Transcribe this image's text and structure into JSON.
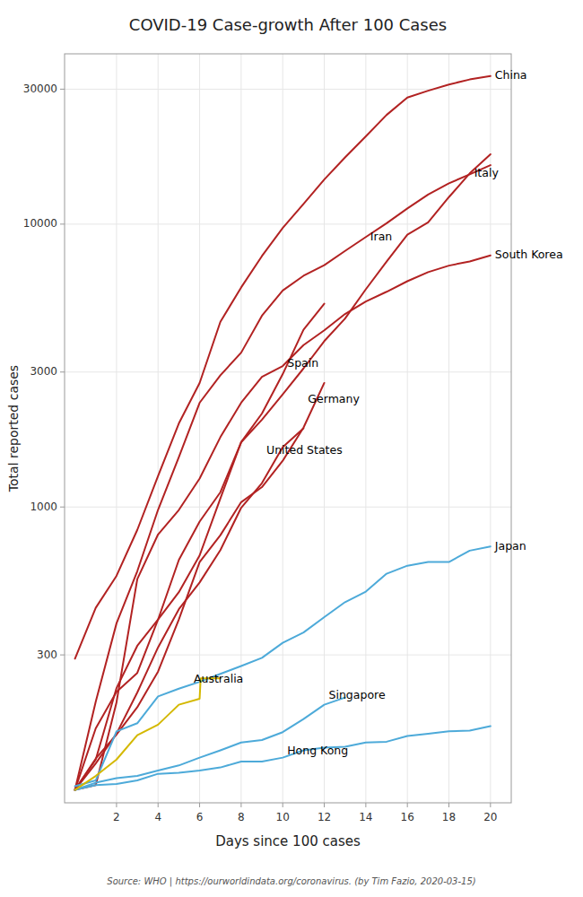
{
  "chart_data": {
    "type": "line",
    "title": "COVID-19 Case-growth After 100 Cases",
    "xlabel": "Days since 100 cases",
    "ylabel": "Total reported cases",
    "source": "Source: WHO | https://ourworldindata.org/coronavirus. (by Tim Fazio, 2020-03-15)",
    "log": "y",
    "grid": true,
    "xlim": [
      -0.5,
      21
    ],
    "ylim": [
      90,
      40000
    ],
    "xticks": [
      2,
      4,
      6,
      8,
      10,
      12,
      14,
      16,
      18,
      20
    ],
    "yticks": [
      300,
      1000,
      3000,
      10000,
      30000
    ],
    "series": [
      {
        "name": "China",
        "color": "#b22222",
        "x": [
          0,
          1,
          2,
          3,
          4,
          5,
          6,
          7,
          8,
          9,
          10,
          11,
          12,
          13,
          14,
          15,
          16,
          17,
          18,
          19,
          20
        ],
        "values": [
          291,
          440,
          571,
          830,
          1287,
          1975,
          2744,
          4515,
          5974,
          7711,
          9692,
          11791,
          14380,
          17205,
          20438,
          24324,
          28018,
          29631,
          31161,
          32459,
          33367
        ],
        "label": {
          "x": 20,
          "y": 33367
        }
      },
      {
        "name": "Italy",
        "color": "#b22222",
        "x": [
          0,
          1,
          2,
          3,
          4,
          5,
          6,
          7,
          8,
          9,
          10,
          11,
          12,
          13,
          14,
          15,
          16,
          17,
          18,
          19,
          20
        ],
        "values": [
          100,
          128,
          229,
          323,
          400,
          650,
          888,
          1128,
          1694,
          2036,
          2502,
          3089,
          3858,
          4636,
          5883,
          7375,
          9172,
          10149,
          12462,
          15113,
          17660
        ],
        "label": {
          "x": 19,
          "y": 15113
        }
      },
      {
        "name": "Iran",
        "color": "#b22222",
        "x": [
          0,
          1,
          2,
          3,
          4,
          5,
          6,
          7,
          8,
          9,
          10,
          11,
          12,
          13,
          14,
          15,
          16,
          17,
          18,
          19,
          20
        ],
        "values": [
          100,
          205,
          388,
          593,
          978,
          1501,
          2336,
          2922,
          3513,
          4747,
          5823,
          6566,
          7161,
          8042,
          9000,
          10075,
          11364,
          12729,
          13938,
          14991,
          16169
        ],
        "label": {
          "x": 14,
          "y": 9000
        }
      },
      {
        "name": "South Korea",
        "color": "#b22222",
        "x": [
          0,
          1,
          2,
          3,
          4,
          5,
          6,
          7,
          8,
          9,
          10,
          11,
          12,
          13,
          14,
          15,
          16,
          17,
          18,
          19,
          20
        ],
        "values": [
          100,
          104,
          204,
          556,
          800,
          976,
          1261,
          1766,
          2337,
          2885,
          3150,
          3736,
          4212,
          4812,
          5328,
          5766,
          6284,
          6767,
          7134,
          7382,
          7755
        ],
        "label": {
          "x": 20,
          "y": 7755
        }
      },
      {
        "name": "Spain",
        "color": "#b22222",
        "x": [
          0,
          1,
          2,
          3,
          4,
          5,
          6,
          7,
          8,
          9,
          10,
          11,
          12
        ],
        "values": [
          100,
          165,
          222,
          259,
          400,
          500,
          674,
          1073,
          1695,
          2140,
          2950,
          4231,
          5232
        ],
        "label": {
          "x": 10,
          "y": 3200
        }
      },
      {
        "name": "Germany",
        "color": "#b22222",
        "x": [
          0,
          1,
          2,
          3,
          4,
          5,
          6,
          7,
          8,
          9,
          10,
          11,
          12
        ],
        "values": [
          100,
          129,
          157,
          196,
          262,
          400,
          639,
          795,
          1040,
          1176,
          1457,
          1908,
          2745
        ],
        "label": {
          "x": 11,
          "y": 2400
        }
      },
      {
        "name": "United States",
        "color": "#b22222",
        "x": [
          0,
          1,
          2,
          3,
          4,
          5,
          6,
          7,
          8,
          9,
          10,
          11
        ],
        "values": [
          100,
          124,
          158,
          221,
          319,
          435,
          541,
          704,
          994,
          1215,
          1629,
          1896
        ],
        "label": {
          "x": 9,
          "y": 1580
        }
      },
      {
        "name": "Japan",
        "color": "#4daad9",
        "x": [
          0,
          1,
          2,
          3,
          4,
          5,
          6,
          7,
          8,
          9,
          10,
          11,
          12,
          13,
          14,
          15,
          16,
          17,
          18,
          19,
          20
        ],
        "values": [
          103,
          108,
          161,
          172,
          214,
          228,
          241,
          257,
          274,
          293,
          331,
          360,
          408,
          461,
          502,
          581,
          620,
          639,
          639,
          701,
          725
        ],
        "label": {
          "x": 20,
          "y": 725
        }
      },
      {
        "name": "Singapore",
        "color": "#4daad9",
        "x": [
          0,
          1,
          2,
          3,
          4,
          5,
          6,
          7,
          8,
          9,
          10,
          11,
          12,
          13
        ],
        "values": [
          100,
          106,
          110,
          112,
          117,
          122,
          130,
          138,
          147,
          150,
          160,
          178,
          200,
          212
        ],
        "label": {
          "x": 12,
          "y": 215
        }
      },
      {
        "name": "Hong Kong",
        "color": "#4daad9",
        "x": [
          0,
          1,
          2,
          3,
          4,
          5,
          6,
          7,
          8,
          9,
          10,
          11,
          12,
          13,
          14,
          15,
          16,
          17,
          18,
          19,
          20
        ],
        "values": [
          100,
          104,
          105,
          108,
          114,
          115,
          117,
          120,
          126,
          126,
          130,
          138,
          141,
          142,
          147,
          148,
          155,
          158,
          161,
          162,
          168
        ],
        "label": {
          "x": 10,
          "y": 137
        }
      },
      {
        "name": "Australia",
        "color": "#d4b800",
        "x": [
          0,
          1,
          2,
          3,
          4,
          5,
          6,
          6.05,
          7
        ],
        "values": [
          100,
          112,
          128,
          156,
          170,
          200,
          210,
          248,
          248
        ],
        "label": {
          "x": 5.5,
          "y": 245
        }
      }
    ]
  }
}
